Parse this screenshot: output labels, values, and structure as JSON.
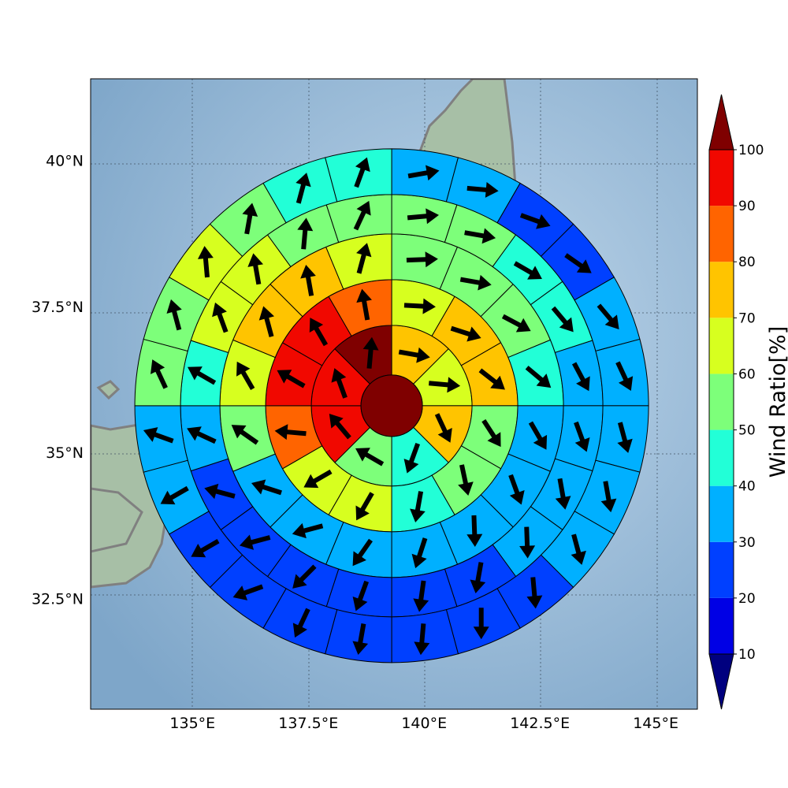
{
  "chart_data": {
    "type": "polar-sector-map",
    "title": "",
    "x_ticks": [
      {
        "lon": 135.0,
        "label": "135°E"
      },
      {
        "lon": 137.5,
        "label": "137.5°E"
      },
      {
        "lon": 140.0,
        "label": "140°E"
      },
      {
        "lon": 142.5,
        "label": "142.5°E"
      },
      {
        "lon": 145.0,
        "label": "145°E"
      }
    ],
    "y_ticks": [
      {
        "lat": 40.0,
        "label": "40°N"
      },
      {
        "lat": 37.5,
        "label": "37.5°N"
      },
      {
        "lat": 35.0,
        "label": "35°N"
      },
      {
        "lat": 32.5,
        "label": "32.5°N"
      }
    ],
    "xlim": [
      132.8,
      145.9
    ],
    "ylim": [
      30.6,
      41.4
    ],
    "grid": true,
    "center": {
      "lon": 139.3,
      "lat": 35.8,
      "value": 100
    },
    "colorbar": {
      "label": "Wind Ratio[%]",
      "ticks": [
        10,
        20,
        30,
        40,
        50,
        60,
        70,
        80,
        90,
        100
      ],
      "levels": [
        0,
        10,
        20,
        30,
        40,
        50,
        60,
        70,
        80,
        90,
        100,
        110
      ],
      "colors": [
        "#00007f",
        "#0000e5",
        "#0040ff",
        "#00b0ff",
        "#22ffd7",
        "#7dff7a",
        "#d7ff1f",
        "#ffc400",
        "#ff6400",
        "#f10800",
        "#7f0000"
      ],
      "extend": "both"
    },
    "rings": [
      {
        "sectors": 8,
        "values": [
          73,
          65,
          73,
          42,
          55,
          95,
          92,
          105
        ],
        "arrows": [
          100,
          95,
          155,
          200,
          300,
          320,
          340,
          5
        ]
      },
      {
        "sectors": 12,
        "values": [
          63,
          75,
          75,
          58,
          55,
          45,
          62,
          65,
          85,
          95,
          95,
          85
        ],
        "arrows": [
          93,
          108,
          128,
          147,
          168,
          190,
          210,
          240,
          275,
          300,
          330,
          350
        ]
      },
      {
        "sectors": 16,
        "values": [
          55,
          57,
          55,
          45,
          32,
          35,
          38,
          33,
          32,
          38,
          33,
          50,
          60,
          73,
          72,
          60
        ],
        "arrows": [
          88,
          100,
          118,
          130,
          150,
          160,
          178,
          198,
          215,
          255,
          288,
          305,
          330,
          345,
          350,
          15
        ]
      },
      {
        "sectors": 20,
        "values": [
          52,
          52,
          45,
          45,
          38,
          32,
          33,
          30,
          25,
          25,
          25,
          25,
          25,
          25,
          35,
          42,
          60,
          60,
          57,
          52
        ],
        "arrows": [
          85,
          100,
          120,
          140,
          152,
          160,
          170,
          178,
          190,
          188,
          200,
          225,
          255,
          285,
          295,
          300,
          340,
          350,
          5,
          25
        ]
      },
      {
        "sectors": 24,
        "values": [
          35,
          35,
          25,
          25,
          35,
          35,
          32,
          32,
          32,
          25,
          25,
          25,
          25,
          25,
          25,
          25,
          35,
          35,
          55,
          55,
          65,
          50,
          45,
          45
        ],
        "arrows": [
          80,
          95,
          110,
          125,
          140,
          155,
          165,
          170,
          165,
          175,
          180,
          185,
          190,
          205,
          250,
          240,
          240,
          290,
          335,
          345,
          355,
          10,
          15,
          20
        ]
      }
    ]
  }
}
